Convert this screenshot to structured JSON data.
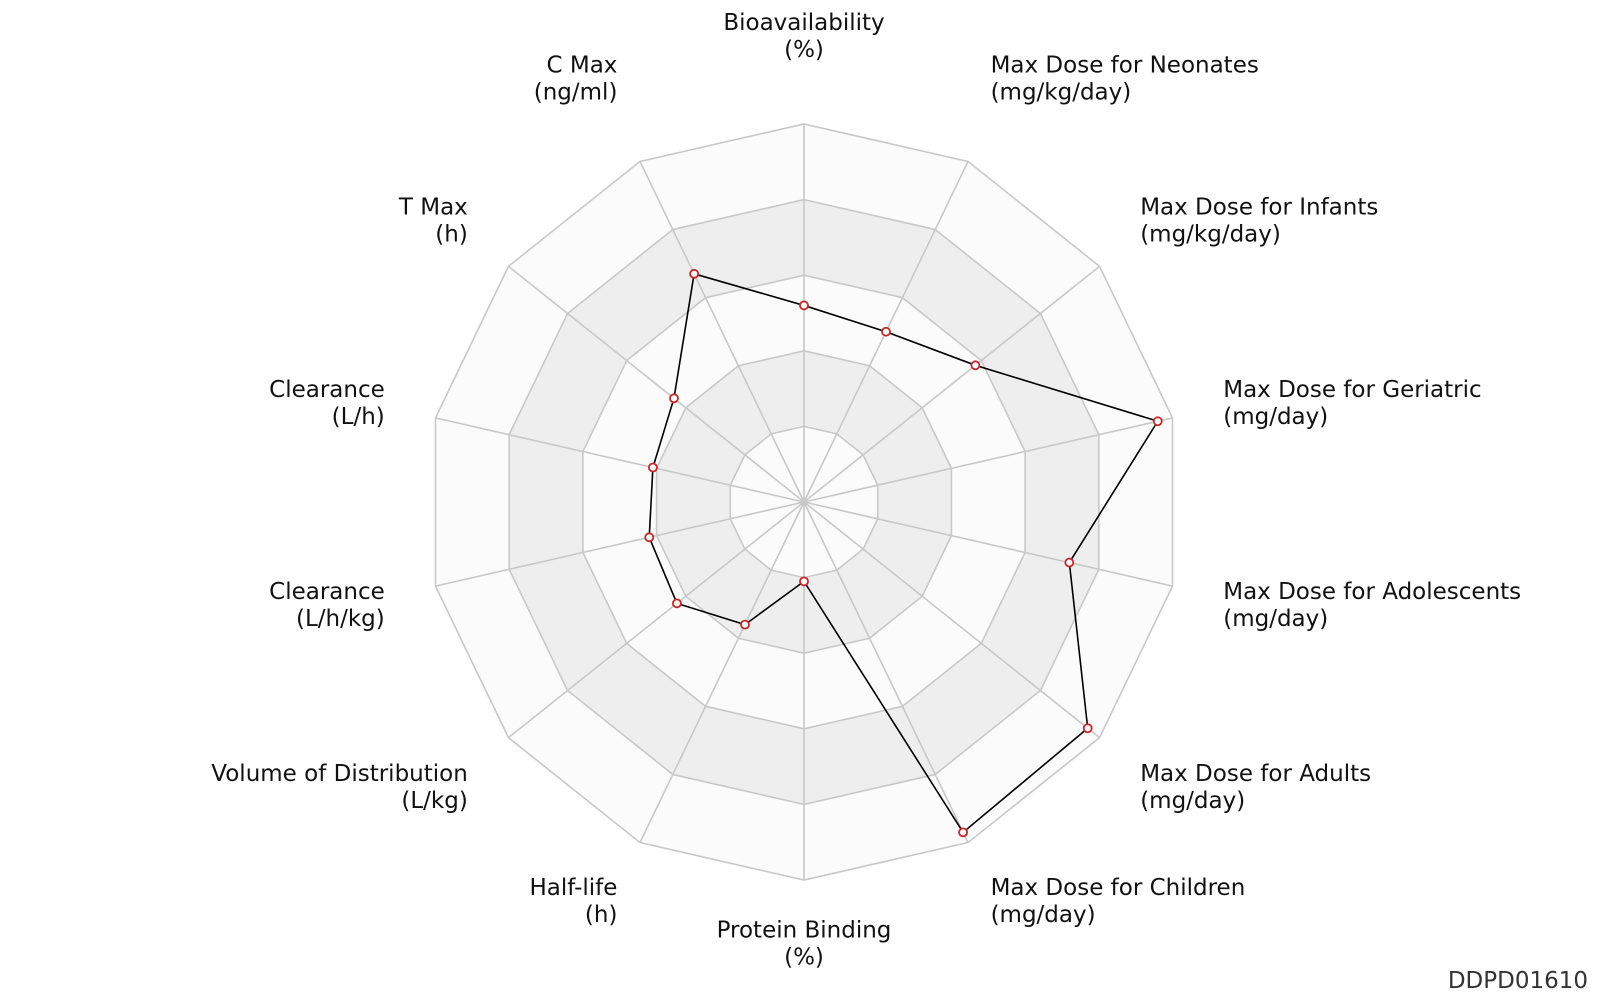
{
  "watermark": "DDPD01610",
  "chart_data": {
    "type": "radar",
    "levels": 5,
    "axes": [
      {
        "name": "Bioavailability",
        "unit": "(%)",
        "value": 0.52
      },
      {
        "name": "Max Dose for Neonates",
        "unit": "(mg/kg/day)",
        "value": 0.5
      },
      {
        "name": "Max Dose for Infants",
        "unit": "(mg/kg/day)",
        "value": 0.58
      },
      {
        "name": "Max Dose for Geriatric",
        "unit": "(mg/day)",
        "value": 0.96
      },
      {
        "name": "Max Dose for Adolescents",
        "unit": "(mg/day)",
        "value": 0.72
      },
      {
        "name": "Max Dose for Adults",
        "unit": "(mg/day)",
        "value": 0.96
      },
      {
        "name": "Max Dose for Children",
        "unit": "(mg/day)",
        "value": 0.97
      },
      {
        "name": "Protein Binding",
        "unit": "(%)",
        "value": 0.21
      },
      {
        "name": "Half-life",
        "unit": "(h)",
        "value": 0.36
      },
      {
        "name": "Volume of Distribution",
        "unit": "(L/kg)",
        "value": 0.43
      },
      {
        "name": "Clearance",
        "unit": "(L/h/kg)",
        "value": 0.42
      },
      {
        "name": "Clearance",
        "unit": "(L/h)",
        "value": 0.41
      },
      {
        "name": "T Max",
        "unit": "(h)",
        "value": 0.44
      },
      {
        "name": "C Max",
        "unit": "(ng/ml)",
        "value": 0.67
      }
    ],
    "colors": {
      "band_shaded": "#eeeeee",
      "band_plain": "#fbfbfb",
      "grid_line": "#c8c8c8",
      "series_line": "#000000",
      "marker_stroke": "#c62828",
      "marker_fill": "#ffffff"
    }
  }
}
